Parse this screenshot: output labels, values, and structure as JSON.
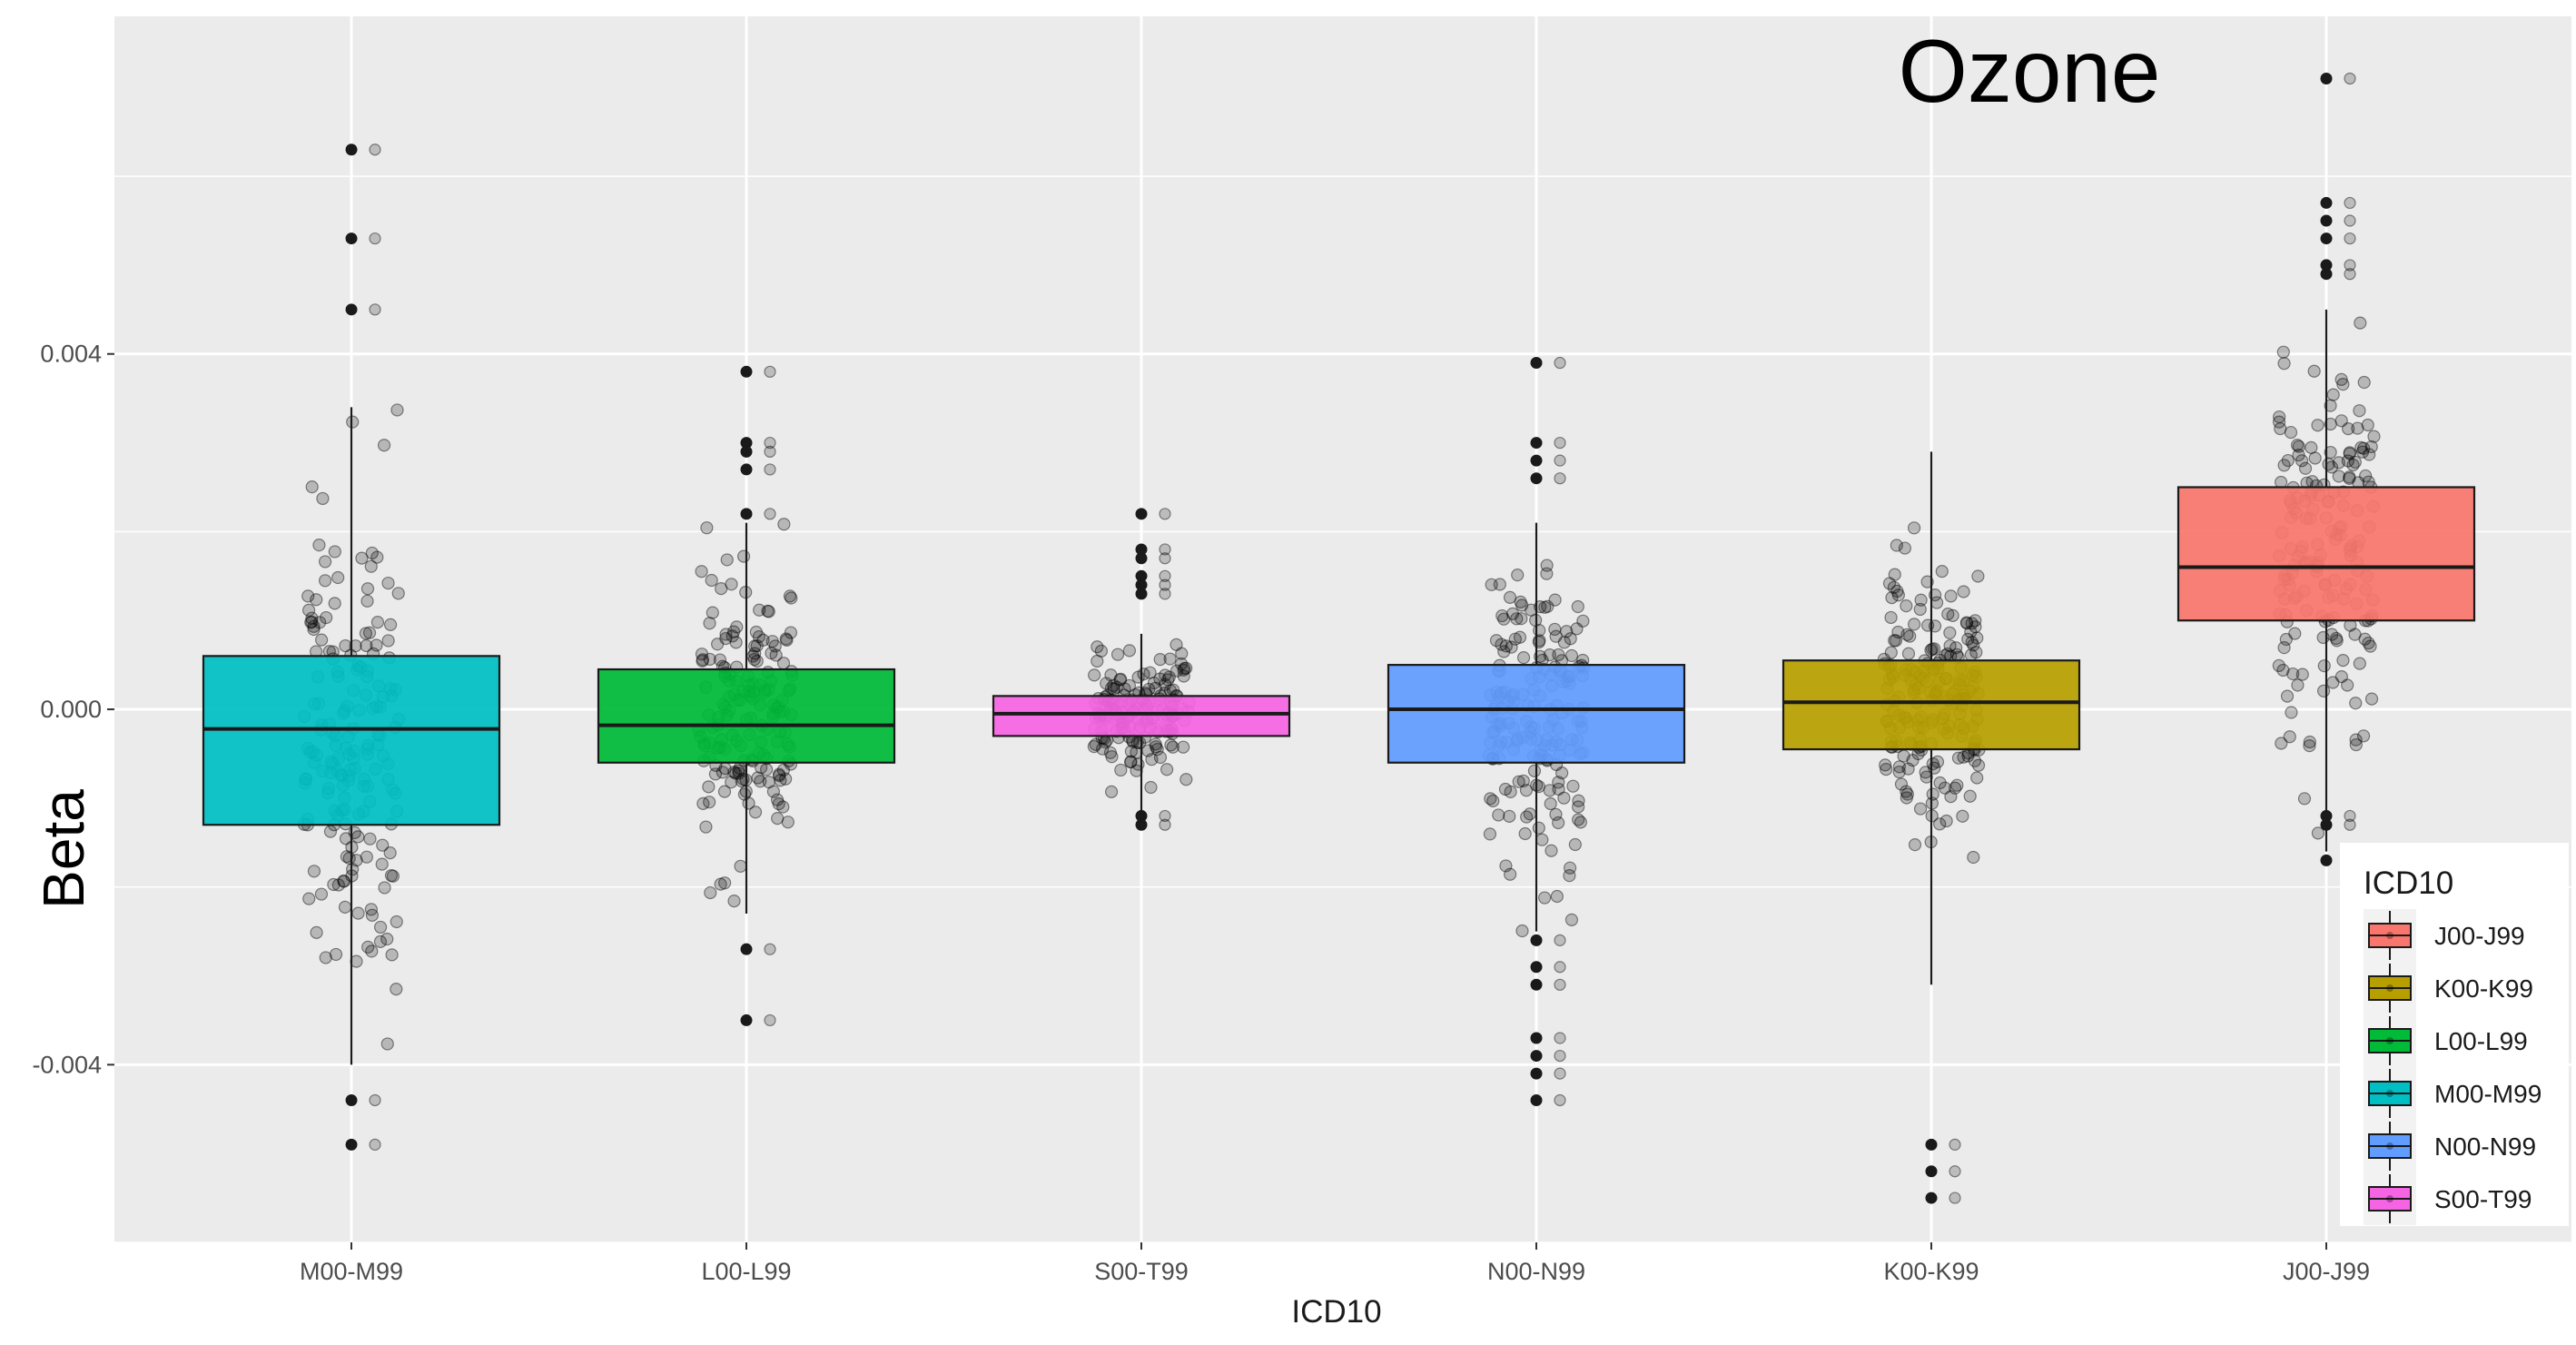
{
  "chart_data": {
    "type": "box",
    "title": "Ozone",
    "xlabel": "ICD10",
    "ylabel": "Beta",
    "ylim": [
      -0.006,
      0.0078
    ],
    "yticks": [
      -0.004,
      0.0,
      0.004
    ],
    "ytick_labels": [
      "-0.004",
      "0.000",
      "0.004"
    ],
    "grid": true,
    "legend": {
      "title": "ICD10",
      "position": "bottom-right",
      "entries": [
        {
          "label": "J00-J99",
          "color": "#F8766D"
        },
        {
          "label": "K00-K99",
          "color": "#B79F00"
        },
        {
          "label": "L00-L99",
          "color": "#00BA38"
        },
        {
          "label": "M00-M99",
          "color": "#00BFC4"
        },
        {
          "label": "N00-N99",
          "color": "#619CFF"
        },
        {
          "label": "S00-T99",
          "color": "#F564E3"
        }
      ]
    },
    "categories": [
      "M00-M99",
      "L00-L99",
      "S00-T99",
      "N00-N99",
      "K00-K99",
      "J00-J99"
    ],
    "boxes": [
      {
        "category": "M00-M99",
        "color": "#00BFC4",
        "q1": -0.0013,
        "median": -0.00022,
        "q3": 0.0006,
        "whisker_low": -0.004,
        "whisker_high": 0.0034,
        "outliers": [
          0.0063,
          0.0053,
          0.0045,
          -0.0044,
          -0.0049
        ],
        "jitter_range": [
          -0.0041,
          0.0034
        ],
        "n_points": 180
      },
      {
        "category": "L00-L99",
        "color": "#00BA38",
        "q1": -0.0006,
        "median": -0.00018,
        "q3": 0.00045,
        "whisker_low": -0.0023,
        "whisker_high": 0.0021,
        "outliers": [
          0.0038,
          0.003,
          0.0029,
          0.0027,
          0.0022,
          -0.0027,
          -0.0035
        ],
        "jitter_range": [
          -0.0023,
          0.0021
        ],
        "n_points": 170
      },
      {
        "category": "S00-T99",
        "color": "#F564E3",
        "q1": -0.0003,
        "median": -5e-05,
        "q3": 0.00015,
        "whisker_low": -0.0013,
        "whisker_high": 0.00085,
        "outliers": [
          0.0022,
          0.0018,
          0.0017,
          0.0015,
          0.0014,
          0.0013,
          -0.0012,
          -0.0013
        ],
        "jitter_range": [
          -0.0013,
          0.00085
        ],
        "n_points": 170
      },
      {
        "category": "N00-N99",
        "color": "#619CFF",
        "q1": -0.0006,
        "median": 0.0,
        "q3": 0.0005,
        "whisker_low": -0.0025,
        "whisker_high": 0.0021,
        "outliers": [
          0.0039,
          0.003,
          0.0028,
          0.0026,
          -0.0026,
          -0.0029,
          -0.0031,
          -0.0037,
          -0.0039,
          -0.0041,
          -0.0044
        ],
        "jitter_range": [
          -0.0025,
          0.0021
        ],
        "n_points": 180
      },
      {
        "category": "K00-K99",
        "color": "#B79F00",
        "q1": -0.00045,
        "median": 8e-05,
        "q3": 0.00055,
        "whisker_low": -0.0031,
        "whisker_high": 0.0029,
        "outliers": [
          -0.0049,
          -0.0052,
          -0.0055
        ],
        "jitter_range": [
          -0.0031,
          0.0029
        ],
        "n_points": 200
      },
      {
        "category": "J00-J99",
        "color": "#F8766D",
        "q1": 0.001,
        "median": 0.0016,
        "q3": 0.0025,
        "whisker_low": -0.0016,
        "whisker_high": 0.0045,
        "outliers": [
          0.0071,
          0.0057,
          0.0055,
          0.0053,
          0.005,
          0.0049,
          -0.0012,
          -0.0013,
          -0.0017
        ],
        "jitter_range": [
          -0.0016,
          0.0045
        ],
        "n_points": 180
      }
    ]
  }
}
